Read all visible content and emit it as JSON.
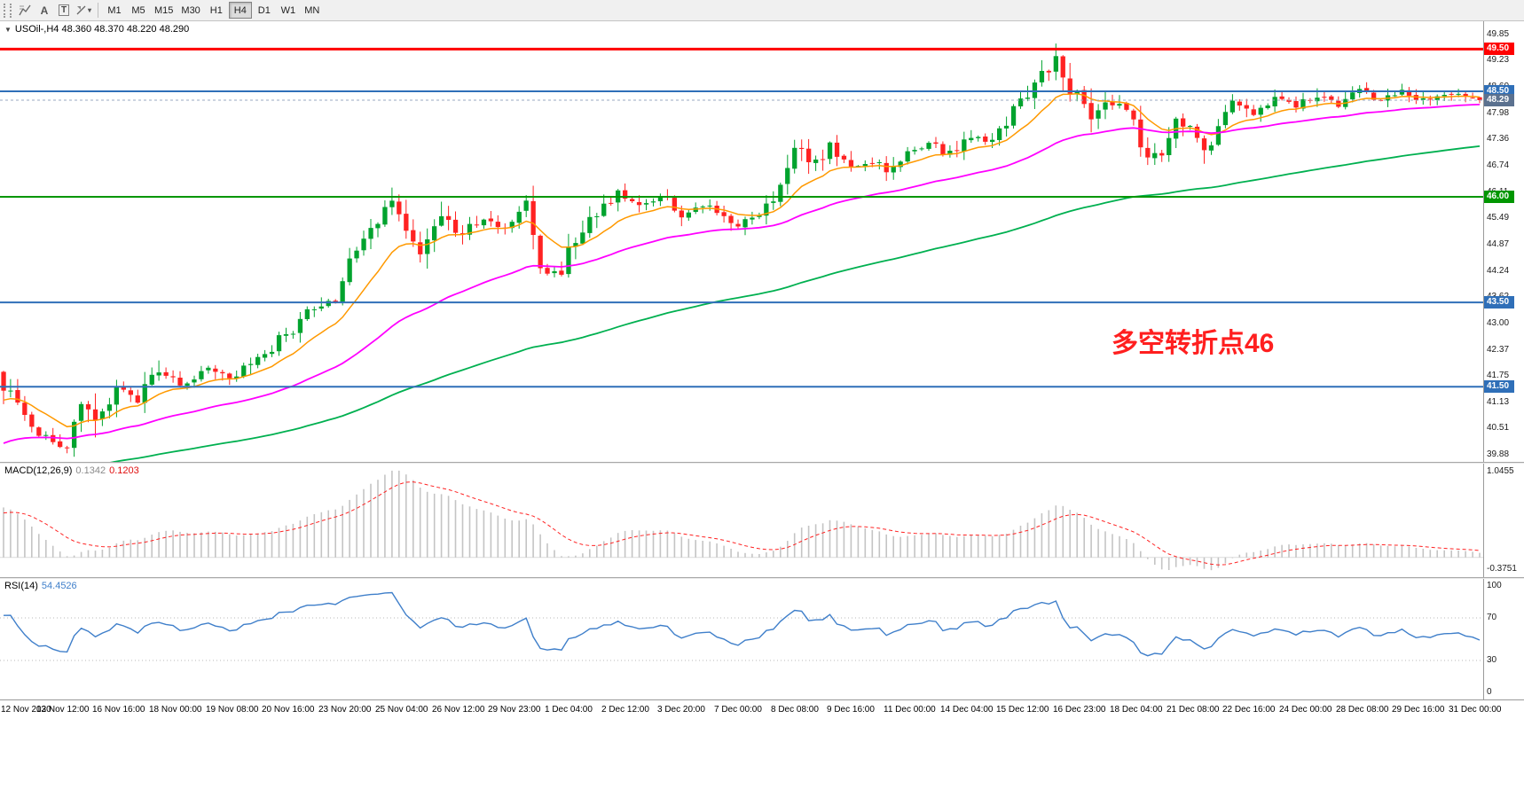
{
  "toolbar": {
    "icon_a": "A",
    "icon_t": "T",
    "timeframes": [
      "M1",
      "M5",
      "M15",
      "M30",
      "H1",
      "H4",
      "D1",
      "W1",
      "MN"
    ],
    "selected_timeframe": "H4"
  },
  "main_chart": {
    "ohlc_label": "USOil-,H4 48.360 48.370 48.220 48.290",
    "annotation": {
      "text": "多空转折点46",
      "color": "#ff1f1f"
    },
    "y_axis": {
      "ticks": [
        "49.85",
        "49.23",
        "48.60",
        "47.98",
        "47.36",
        "46.74",
        "46.11",
        "45.49",
        "44.87",
        "44.24",
        "43.62",
        "43.00",
        "42.37",
        "41.75",
        "41.13",
        "40.51",
        "39.88"
      ]
    },
    "hlines": [
      {
        "price": 49.5,
        "label": "49.50",
        "color": "#ff0000",
        "width": 3
      },
      {
        "price": 48.5,
        "label": "48.50",
        "color": "#2f6fb8",
        "width": 2
      },
      {
        "price": 46.0,
        "label": "46.00",
        "color": "#009600",
        "width": 2
      },
      {
        "price": 43.5,
        "label": "43.50",
        "color": "#2f6fb8",
        "width": 2
      },
      {
        "price": 41.5,
        "label": "41.50",
        "color": "#2f6fb8",
        "width": 2
      }
    ],
    "current_price": {
      "value": 48.29,
      "label": "48.29",
      "badge_color": "#5b718f"
    }
  },
  "macd_panel": {
    "label": "MACD(12,26,9)",
    "value_main": "0.1342",
    "value_signal": "0.1203",
    "axis_top": "1.0455",
    "axis_bottom": "-0.3751"
  },
  "rsi_panel": {
    "label": "RSI(14)",
    "value": "54.4526",
    "axis_labels": [
      "100",
      "70",
      "30",
      "0"
    ]
  },
  "time_axis": {
    "labels": [
      "12 Nov 2020",
      "13 Nov 12:00",
      "16 Nov 16:00",
      "18 Nov 00:00",
      "19 Nov 08:00",
      "20 Nov 16:00",
      "23 Nov 20:00",
      "25 Nov 04:00",
      "26 Nov 12:00",
      "29 Nov 23:00",
      "1 Dec 04:00",
      "2 Dec 12:00",
      "3 Dec 20:00",
      "7 Dec 00:00",
      "8 Dec 08:00",
      "9 Dec 16:00",
      "11 Dec 00:00",
      "14 Dec 04:00",
      "15 Dec 12:00",
      "16 Dec 23:00",
      "18 Dec 04:00",
      "21 Dec 08:00",
      "22 Dec 16:00",
      "24 Dec 00:00",
      "28 Dec 08:00",
      "29 Dec 16:00",
      "31 Dec 00:00"
    ]
  },
  "chart_data": {
    "type": "candlestick",
    "symbol": "USOil-",
    "timeframe": "H4",
    "ohlc": {
      "open": 48.36,
      "high": 48.37,
      "low": 48.22,
      "close": 48.29
    },
    "seed": 20201231,
    "bars_visible": 210,
    "warmup": 40,
    "price_top": 50.16,
    "price_bottom": 39.72,
    "anchors": [
      [
        0,
        38.7
      ],
      [
        14,
        39.4
      ],
      [
        26,
        40.0
      ],
      [
        34,
        41.0
      ],
      [
        40,
        41.85
      ],
      [
        43,
        41.1
      ],
      [
        46,
        40.5
      ],
      [
        50,
        40.0
      ],
      [
        52,
        41.25
      ],
      [
        54,
        40.75
      ],
      [
        57,
        41.5
      ],
      [
        60,
        41.2
      ],
      [
        63,
        41.85
      ],
      [
        67,
        41.5
      ],
      [
        70,
        41.95
      ],
      [
        73,
        41.65
      ],
      [
        76,
        42.1
      ],
      [
        79,
        42.35
      ],
      [
        83,
        43.1
      ],
      [
        86,
        43.5
      ],
      [
        88,
        43.55
      ],
      [
        91,
        44.9
      ],
      [
        94,
        45.4
      ],
      [
        96,
        45.9
      ],
      [
        98,
        45.2
      ],
      [
        100,
        44.7
      ],
      [
        103,
        45.5
      ],
      [
        106,
        45.0
      ],
      [
        109,
        45.6
      ],
      [
        112,
        45.2
      ],
      [
        115,
        45.7
      ],
      [
        117,
        44.3
      ],
      [
        119,
        44.15
      ],
      [
        122,
        44.9
      ],
      [
        125,
        45.6
      ],
      [
        128,
        46.1
      ],
      [
        131,
        45.8
      ],
      [
        134,
        46.0
      ],
      [
        137,
        45.6
      ],
      [
        140,
        45.8
      ],
      [
        143,
        45.5
      ],
      [
        145,
        45.3
      ],
      [
        147,
        45.5
      ],
      [
        150,
        46.0
      ],
      [
        153,
        47.25
      ],
      [
        155,
        46.7
      ],
      [
        158,
        47.2
      ],
      [
        161,
        46.7
      ],
      [
        164,
        46.85
      ],
      [
        166,
        46.55
      ],
      [
        169,
        47.0
      ],
      [
        172,
        47.3
      ],
      [
        175,
        47.0
      ],
      [
        178,
        47.5
      ],
      [
        181,
        47.3
      ],
      [
        184,
        48.0
      ],
      [
        186,
        48.45
      ],
      [
        188,
        48.9
      ],
      [
        190,
        49.15
      ],
      [
        193,
        48.4
      ],
      [
        195,
        47.8
      ],
      [
        198,
        48.3
      ],
      [
        200,
        48.05
      ],
      [
        203,
        46.8
      ],
      [
        205,
        47.1
      ],
      [
        207,
        48.05
      ],
      [
        209,
        47.6
      ],
      [
        211,
        46.95
      ],
      [
        213,
        47.85
      ],
      [
        216,
        48.3
      ],
      [
        218,
        48.0
      ],
      [
        221,
        48.35
      ],
      [
        224,
        48.1
      ],
      [
        227,
        48.45
      ],
      [
        230,
        48.2
      ],
      [
        233,
        48.5
      ],
      [
        236,
        48.3
      ],
      [
        239,
        48.55
      ],
      [
        242,
        48.25
      ],
      [
        245,
        48.5
      ],
      [
        248,
        48.35
      ],
      [
        250,
        48.29
      ]
    ],
    "candle_up": "#00a32e",
    "candle_down": "#ff2222",
    "ma_lines": [
      {
        "period": 12,
        "color": "#ff9900",
        "width": 1.5
      },
      {
        "period": 44,
        "color": "#ff00ff",
        "width": 1.8
      },
      {
        "period": 120,
        "color": "#00b050",
        "width": 1.8
      }
    ],
    "macd": {
      "fast": 12,
      "slow": 26,
      "signal": 9,
      "hist_color": "#c4c4c4",
      "signal_color": "#ff2222"
    },
    "rsi": {
      "period": 14,
      "color": "#3f7fca",
      "levels": [
        70,
        30
      ]
    }
  }
}
